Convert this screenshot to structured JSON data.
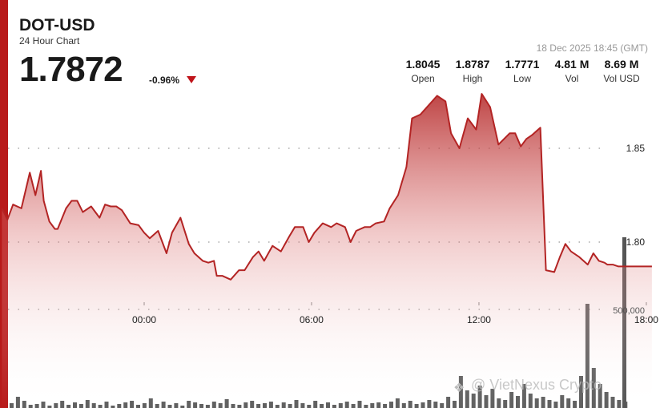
{
  "header": {
    "ticker": "DOT-USD",
    "subtitle": "24 Hour Chart",
    "price": "1.7872",
    "change": "-0.96%",
    "timestamp": "18 Dec 2025 18:45 (GMT)"
  },
  "stats": [
    {
      "value": "1.8045",
      "label": "Open"
    },
    {
      "value": "1.8787",
      "label": "High"
    },
    {
      "value": "1.7771",
      "label": "Low"
    },
    {
      "value": "4.81 M",
      "label": "Vol"
    },
    {
      "value": "8.69 M",
      "label": "Vol USD"
    }
  ],
  "watermark": "@ VietNexus Crypto",
  "colors": {
    "accent": "#b81a1a",
    "line": "#b32424",
    "down": "#c0141b",
    "volume": "#444444"
  },
  "chart_data": {
    "type": "area",
    "title": "",
    "xlabel": "",
    "ylabel": "",
    "x_ticks": [
      "00:00",
      "06:00",
      "12:00",
      "18:00"
    ],
    "x_tick_hours": [
      0,
      6,
      12,
      18
    ],
    "y_ticks": [
      "1.85",
      "1.80"
    ],
    "y_tick_values": [
      1.85,
      1.8
    ],
    "volume_tick_label": "500,000",
    "volume_tick_value": 500000,
    "grid": "dotted horizontal",
    "series": [
      {
        "hours": [
          -5.1,
          -4.9,
          -4.7,
          -4.4,
          -4.1,
          -3.9,
          -3.7,
          -3.6,
          -3.4,
          -3.2,
          -3.1,
          -2.8,
          -2.6,
          -2.4,
          -2.2,
          -1.9,
          -1.6,
          -1.4,
          -1.2,
          -1.0,
          -0.8,
          -0.5,
          -0.2,
          0.0,
          0.2,
          0.5,
          0.8,
          1.0,
          1.3,
          1.6,
          1.8,
          2.1,
          2.3,
          2.5,
          2.6,
          2.8,
          3.1,
          3.4,
          3.6,
          3.9,
          4.1,
          4.3,
          4.6,
          4.9,
          5.2,
          5.4,
          5.7,
          5.9,
          6.1,
          6.4,
          6.7,
          6.9,
          7.2,
          7.4,
          7.6,
          7.9,
          8.1,
          8.3,
          8.6,
          8.8,
          9.1,
          9.4,
          9.6,
          9.9,
          10.2,
          10.5,
          10.8,
          11.0,
          11.3,
          11.6,
          11.9,
          12.1,
          12.4,
          12.7,
          12.9,
          13.1,
          13.3,
          13.5,
          13.7,
          13.9,
          14.2,
          14.4,
          14.7,
          14.9,
          15.1,
          15.3,
          15.6,
          15.9,
          16.1,
          16.3,
          16.5,
          16.6,
          16.8,
          17.0,
          17.3,
          17.6,
          17.9,
          18.1,
          18.2
        ],
        "values": [
          1.818,
          1.812,
          1.82,
          1.818,
          1.837,
          1.825,
          1.838,
          1.822,
          1.811,
          1.807,
          1.807,
          1.818,
          1.822,
          1.822,
          1.816,
          1.819,
          1.813,
          1.82,
          1.819,
          1.819,
          1.817,
          1.81,
          1.809,
          1.805,
          1.802,
          1.806,
          1.794,
          1.805,
          1.813,
          1.799,
          1.794,
          1.79,
          1.789,
          1.79,
          1.782,
          1.782,
          1.78,
          1.785,
          1.785,
          1.792,
          1.795,
          1.79,
          1.798,
          1.795,
          1.803,
          1.808,
          1.808,
          1.8,
          1.805,
          1.81,
          1.808,
          1.81,
          1.808,
          1.8,
          1.806,
          1.808,
          1.808,
          1.81,
          1.811,
          1.818,
          1.825,
          1.84,
          1.866,
          1.868,
          1.873,
          1.878,
          1.875,
          1.858,
          1.85,
          1.866,
          1.86,
          1.879,
          1.872,
          1.852,
          1.855,
          1.858,
          1.858,
          1.851,
          1.855,
          1.857,
          1.861,
          1.785,
          1.784,
          1.792,
          1.799,
          1.795,
          1.792,
          1.788,
          1.794,
          1.79,
          1.789,
          1.788,
          1.788,
          1.787,
          1.787,
          1.787,
          1.787,
          1.787,
          1.787
        ]
      }
    ]
  }
}
